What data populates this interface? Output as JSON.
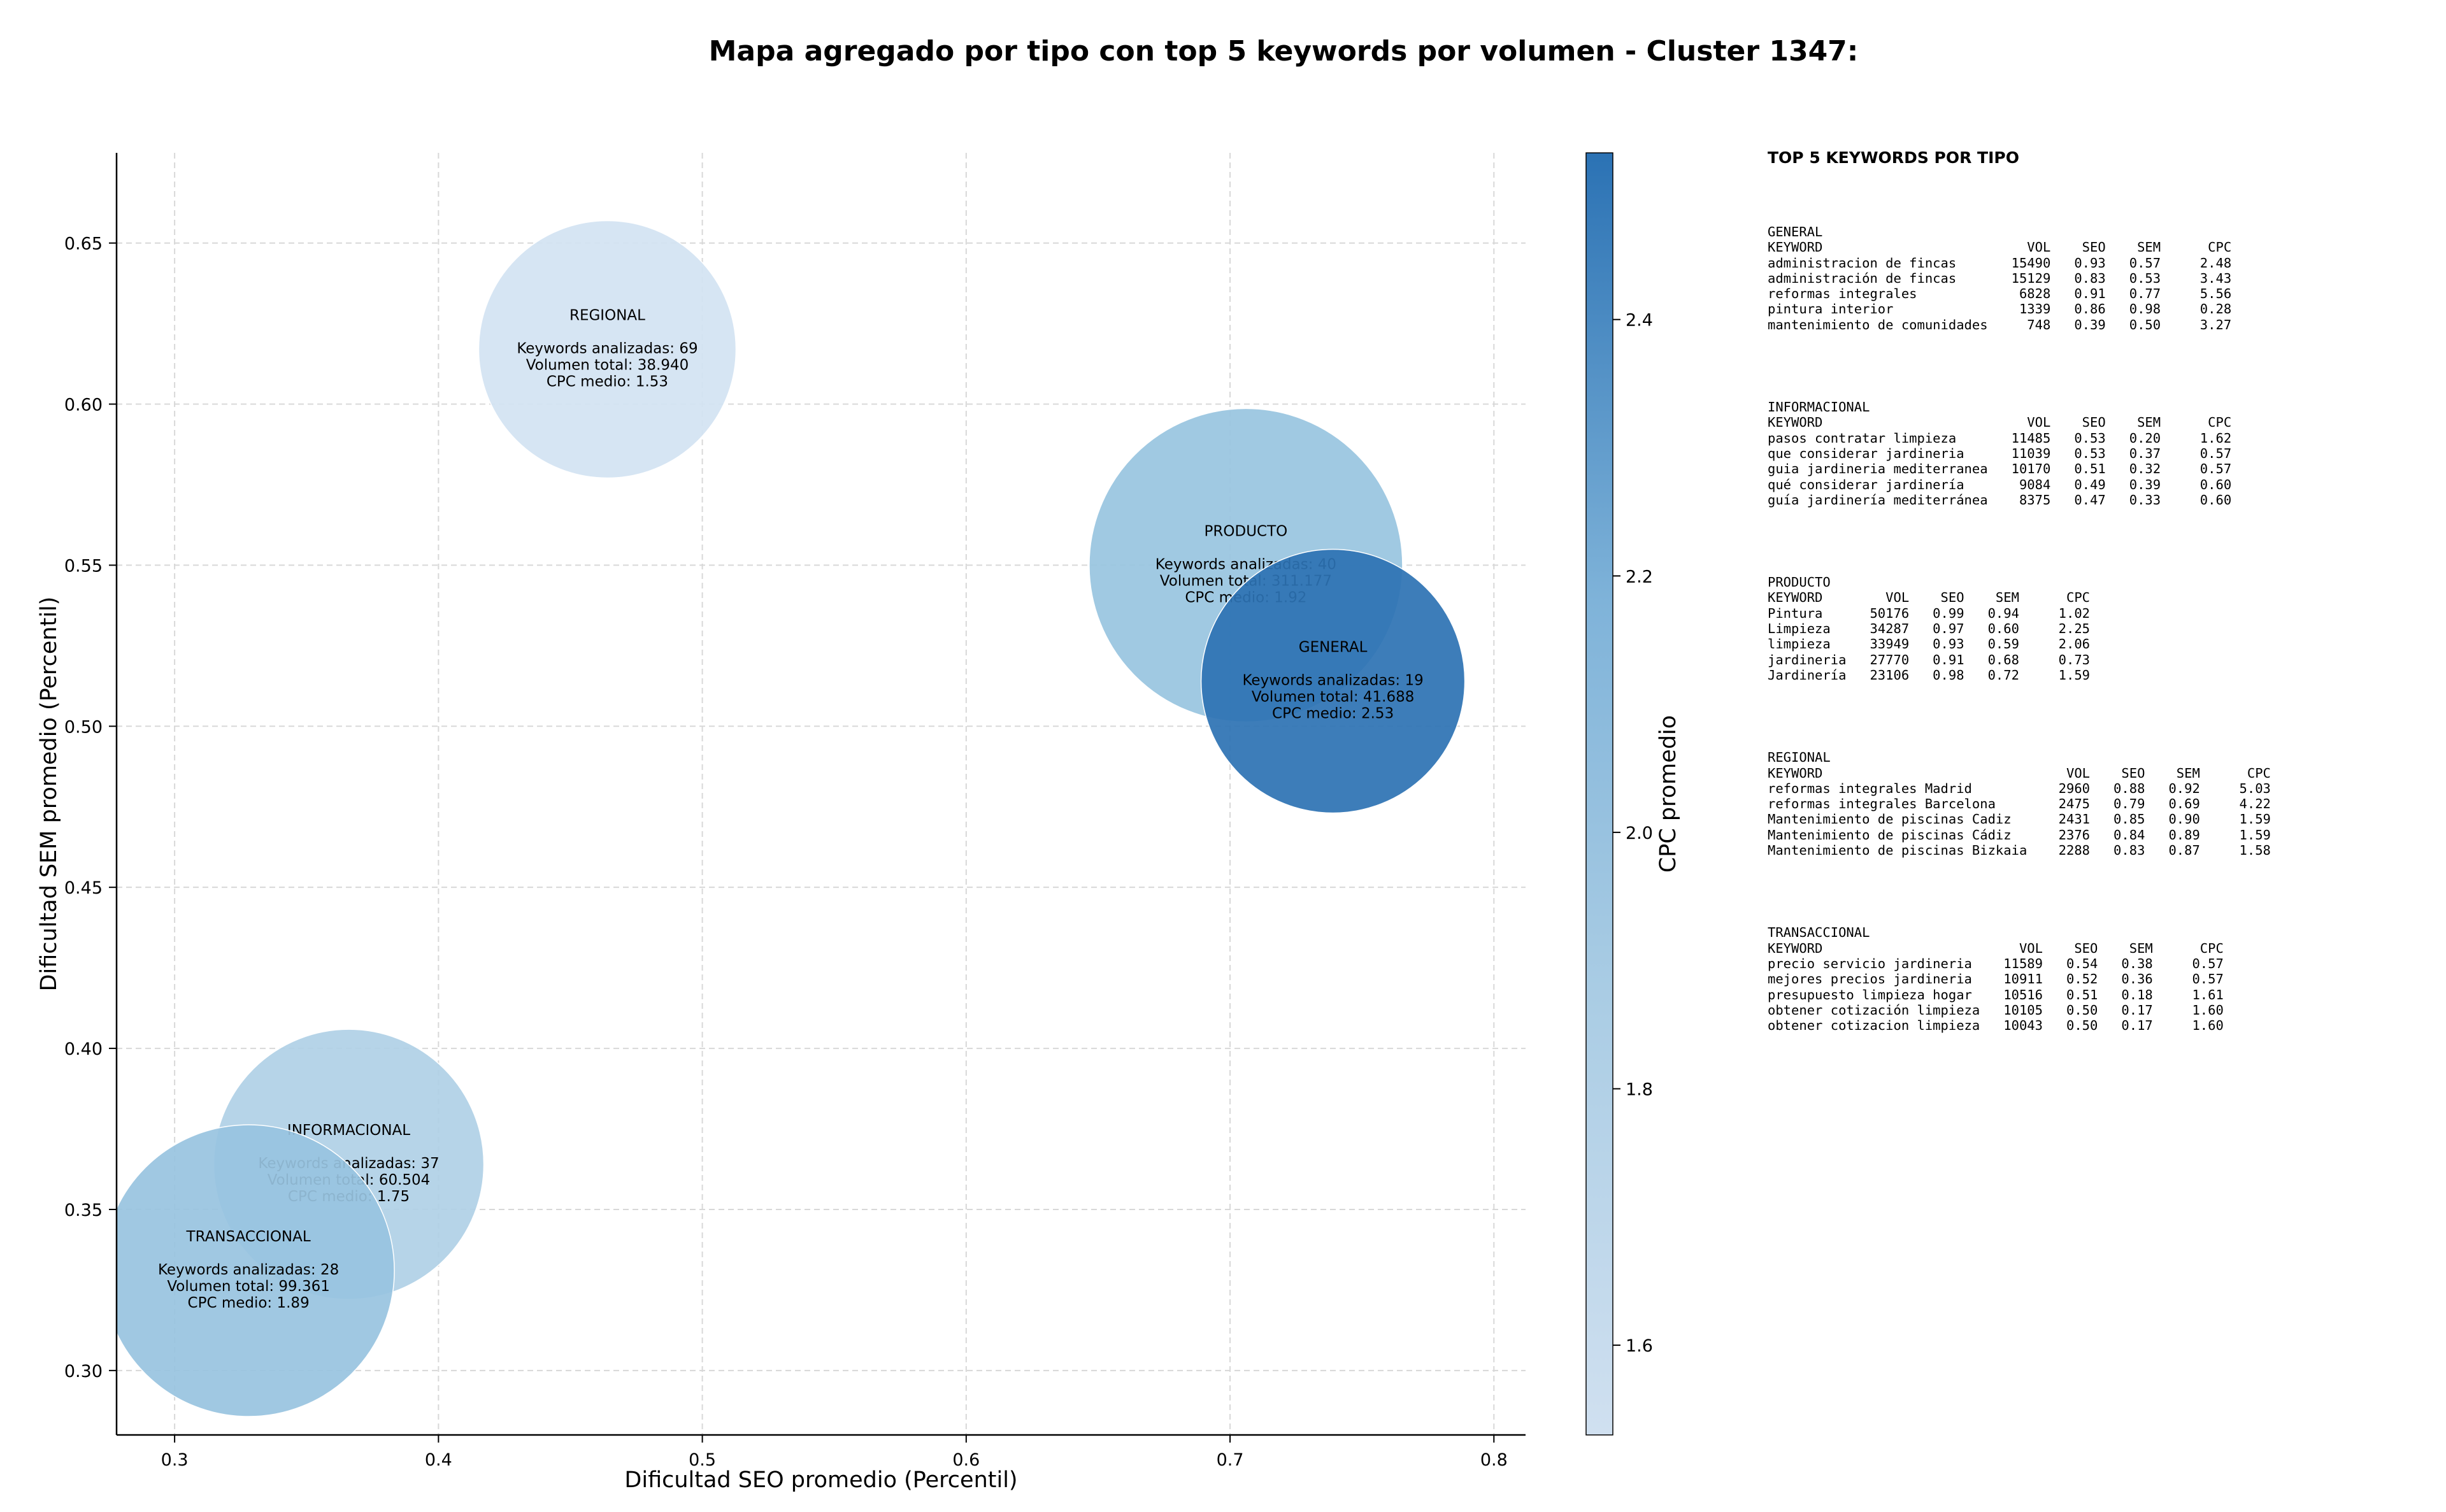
{
  "chart_data": {
    "type": "scatter",
    "title": "Mapa agregado por tipo con top 5 keywords por volumen - Cluster 1347:",
    "xlabel": "Dificultad SEO promedio (Percentil)",
    "ylabel": "Dificultad SEM promedio (Percentil)",
    "xlim": [
      0.278,
      0.812
    ],
    "ylim": [
      0.28,
      0.678
    ],
    "xticks": [
      "0.3",
      "0.4",
      "0.5",
      "0.6",
      "0.7",
      "0.8"
    ],
    "yticks": [
      "0.30",
      "0.35",
      "0.40",
      "0.45",
      "0.50",
      "0.55",
      "0.60",
      "0.65"
    ],
    "grid": true,
    "colorbar": {
      "label": "CPC promedio",
      "min": 1.53,
      "max": 2.53,
      "ticks": [
        "1.6",
        "1.8",
        "2.0",
        "2.2",
        "2.4"
      ],
      "color_low": "#d0e0f0",
      "color_high": "#2b72b4"
    },
    "bubble_label_templates": {
      "keywords": "Keywords analizadas: ",
      "volume": "Volumen total: ",
      "cpc": "CPC medio: "
    },
    "points": [
      {
        "name": "INFORMACIONAL",
        "x": 0.366,
        "y": 0.364,
        "keywords": 37,
        "volume": "60.504",
        "volume_num": 60504,
        "cpc": 1.75,
        "color": "#b0d0e6"
      },
      {
        "name": "TRANSACCIONAL",
        "x": 0.328,
        "y": 0.331,
        "keywords": 28,
        "volume": "99.361",
        "volume_num": 99361,
        "cpc": 1.89,
        "color": "#98c3e0"
      },
      {
        "name": "REGIONAL",
        "x": 0.464,
        "y": 0.617,
        "keywords": 69,
        "volume": "38.940",
        "volume_num": 38940,
        "cpc": 1.53,
        "color": "#d3e3f2"
      },
      {
        "name": "GENERAL",
        "x": 0.739,
        "y": 0.514,
        "keywords": 19,
        "volume": "41.688",
        "volume_num": 41688,
        "cpc": 2.53,
        "color": "#2c72b3"
      },
      {
        "name": "PRODUCTO",
        "x": 0.706,
        "y": 0.55,
        "keywords": 40,
        "volume": "311.177",
        "volume_num": 311177,
        "cpc": 1.92,
        "color": "#98c4df"
      }
    ]
  },
  "side_panel": {
    "title": "TOP 5 KEYWORDS POR TIPO",
    "blocks": [
      {
        "type": "GENERAL",
        "text": "GENERAL\nKEYWORD                          VOL    SEO    SEM      CPC\nadministracion de fincas       15490   0.93   0.57     2.48\nadministración de fincas       15129   0.83   0.53     3.43\nreformas integrales             6828   0.91   0.77     5.56\npintura interior                1339   0.86   0.98     0.28\nmantenimiento de comunidades     748   0.39   0.50     3.27"
      },
      {
        "type": "INFORMACIONAL",
        "text": "INFORMACIONAL\nKEYWORD                          VOL    SEO    SEM      CPC\npasos contratar limpieza       11485   0.53   0.20     1.62\nque considerar jardineria      11039   0.53   0.37     0.57\nguia jardineria mediterranea   10170   0.51   0.32     0.57\nqué considerar jardinería       9084   0.49   0.39     0.60\nguía jardinería mediterránea    8375   0.47   0.33     0.60"
      },
      {
        "type": "PRODUCTO",
        "text": "PRODUCTO\nKEYWORD        VOL    SEO    SEM      CPC\nPintura      50176   0.99   0.94     1.02\nLimpieza     34287   0.97   0.60     2.25\nlimpieza     33949   0.93   0.59     2.06\njardineria   27770   0.91   0.68     0.73\nJardinería   23106   0.98   0.72     1.59"
      },
      {
        "type": "REGIONAL",
        "text": "REGIONAL\nKEYWORD                               VOL    SEO    SEM      CPC\nreformas integrales Madrid           2960   0.88   0.92     5.03\nreformas integrales Barcelona        2475   0.79   0.69     4.22\nMantenimiento de piscinas Cadiz      2431   0.85   0.90     1.59\nMantenimiento de piscinas Cádiz      2376   0.84   0.89     1.59\nMantenimiento de piscinas Bizkaia    2288   0.83   0.87     1.58"
      },
      {
        "type": "TRANSACCIONAL",
        "text": "TRANSACCIONAL\nKEYWORD                         VOL    SEO    SEM      CPC\nprecio servicio jardineria    11589   0.54   0.38     0.57\nmejores precios jardineria    10911   0.52   0.36     0.57\npresupuesto limpieza hogar    10516   0.51   0.18     1.61\nobtener cotización limpieza   10105   0.50   0.17     1.60\nobtener cotizacion limpieza   10043   0.50   0.17     1.60"
      }
    ]
  }
}
